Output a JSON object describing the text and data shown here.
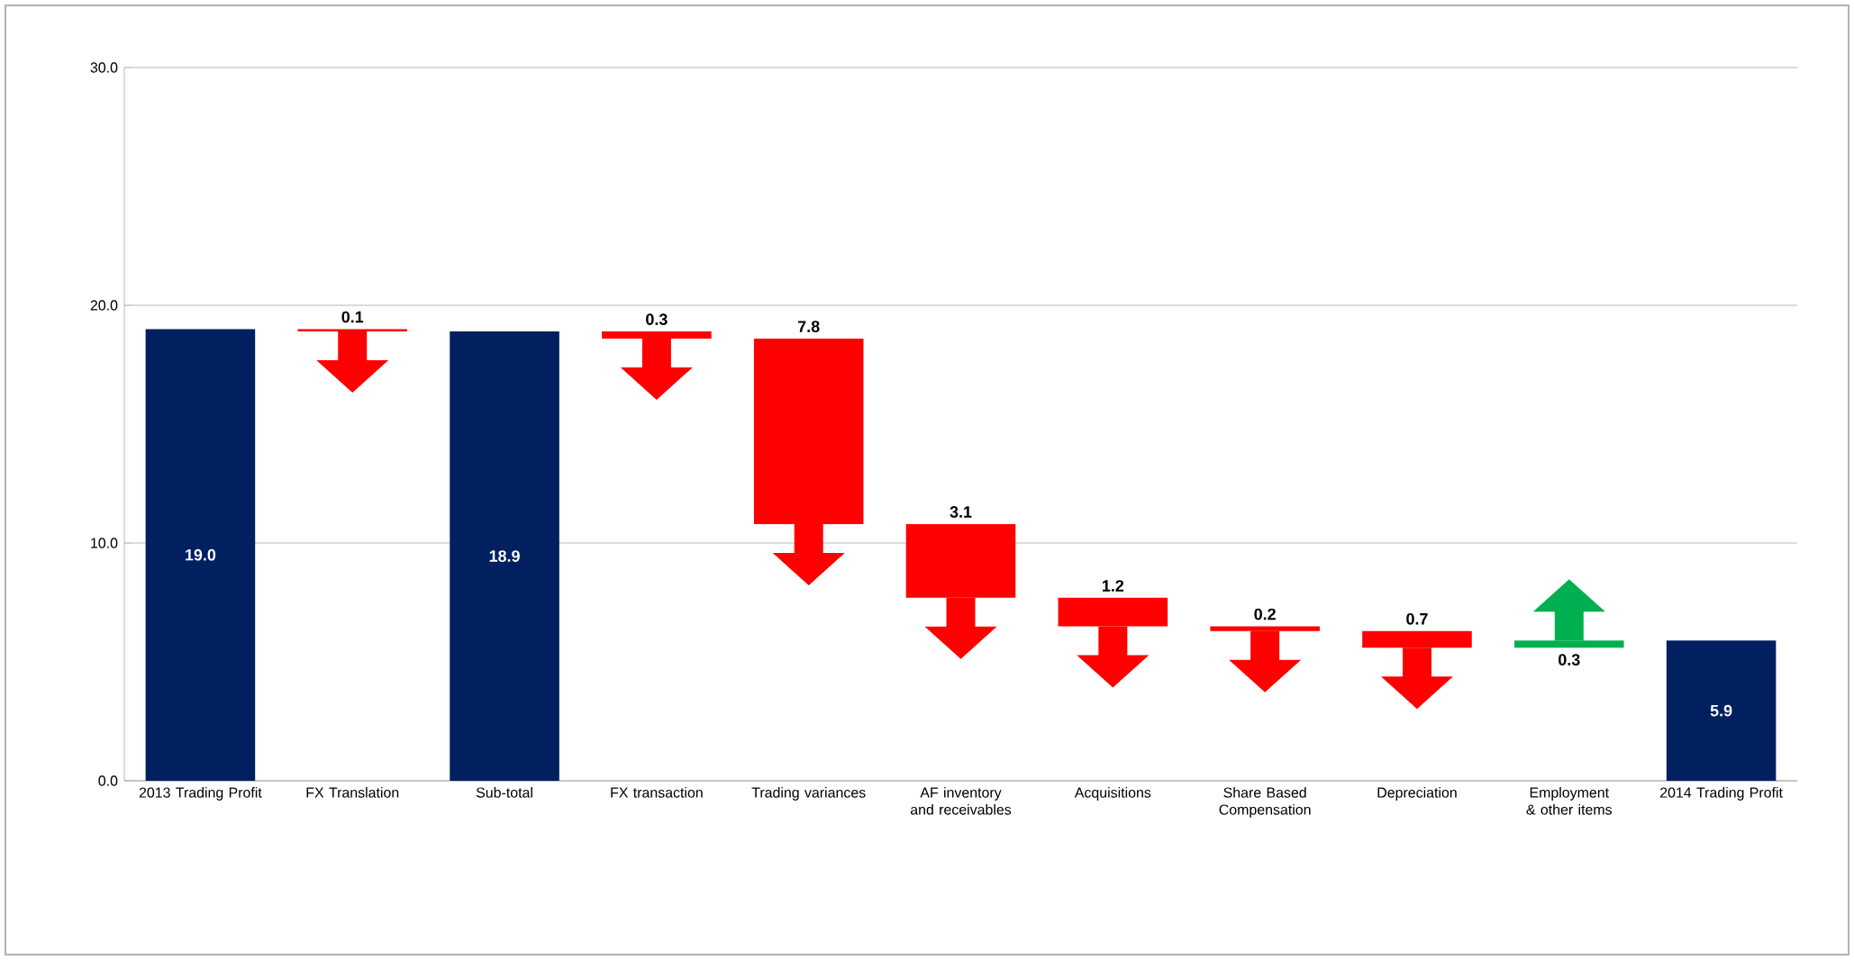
{
  "chart_data": {
    "type": "bar",
    "categories": [
      "2013 Trading Profit",
      "FX Translation",
      "Sub-total",
      "FX transaction",
      "Trading variances",
      "AF inventory and receivables",
      "Acquisitions",
      "Share Based Compensation",
      "Depreciation",
      "Employment & other items",
      "2014 Trading Profit"
    ],
    "values": [
      19.0,
      -0.1,
      18.9,
      -0.3,
      -7.8,
      -3.1,
      -1.2,
      -0.2,
      -0.7,
      0.3,
      5.9
    ],
    "base": [
      0,
      19.0,
      0,
      18.9,
      18.6,
      10.8,
      7.7,
      6.5,
      6.3,
      5.6,
      0
    ],
    "colors": [
      "#002060",
      "#ff0000",
      "#002060",
      "#ff0000",
      "#ff0000",
      "#ff0000",
      "#ff0000",
      "#ff0000",
      "#ff0000",
      "#00b050",
      "#002060"
    ],
    "value_labels": [
      "19.0",
      "0.1",
      "18.9",
      "0.3",
      "7.8",
      "3.1",
      "1.2",
      "0.2",
      "0.7",
      "0.3",
      "5.9"
    ],
    "ylim": [
      0,
      30
    ],
    "yticks": [
      {
        "value": 0,
        "label": "0.0"
      },
      {
        "value": 10,
        "label": "10.0"
      },
      {
        "value": 20,
        "label": "20.0"
      },
      {
        "value": 30,
        "label": "30.0"
      }
    ],
    "grid": "y"
  }
}
